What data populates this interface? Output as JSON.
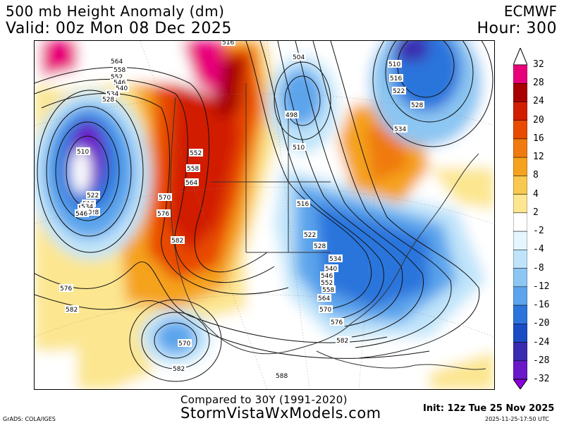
{
  "header": {
    "title": "500 mb Height Anomaly (dm)",
    "valid": "Valid: 00z Mon 08 Dec 2025",
    "model": "ECMWF",
    "hour": "Hour: 300"
  },
  "legend": {
    "labels": [
      "32",
      "28",
      "24",
      "20",
      "16",
      "12",
      "8",
      "4",
      "2",
      "-2",
      "-4",
      "-8",
      "-12",
      "-16",
      "-20",
      "-24",
      "-28",
      "-32"
    ],
    "colors": [
      "#e8007a",
      "#a80000",
      "#d21e00",
      "#e84a00",
      "#f07a10",
      "#f5a21e",
      "#f8c850",
      "#fce690",
      "#ffffff",
      "#e6f6ff",
      "#bfe4fa",
      "#8cc6f2",
      "#5ca4ec",
      "#2c74dc",
      "#1a4cc4",
      "#3a2cb0",
      "#6a18c8",
      "#8c00e0"
    ]
  },
  "contour_labels": [
    "564",
    "558",
    "552",
    "546",
    "540",
    "534",
    "528",
    "522",
    "516",
    "510",
    "516",
    "522",
    "528",
    "534",
    "540",
    "546",
    "552",
    "558",
    "564",
    "570",
    "576",
    "582",
    "504",
    "498",
    "510",
    "516",
    "522",
    "528",
    "534",
    "540",
    "546",
    "552",
    "558",
    "564",
    "570",
    "576",
    "582",
    "576",
    "582",
    "570",
    "582",
    "588",
    "510",
    "516",
    "522",
    "528",
    "534"
  ],
  "footer": {
    "compared": "Compared to 30Y (1991-2020)",
    "site": "StormVistaWxModels.com",
    "init": "Init: 12z Tue 25 Nov 2025",
    "credit": "GrADS: COLA/IGES",
    "timestamp": "2025-11-25-17:50 UTC"
  }
}
